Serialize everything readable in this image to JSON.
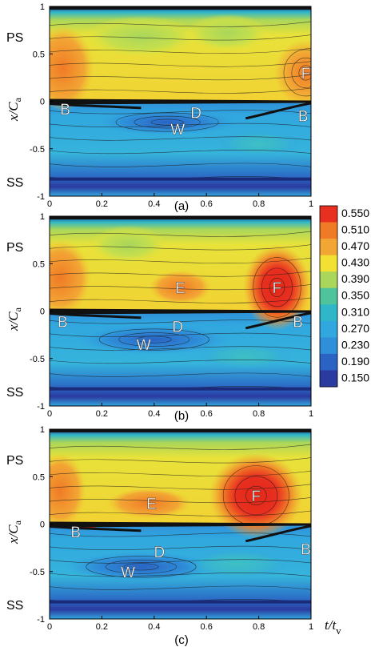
{
  "chart_data": {
    "type": "heatmap",
    "xlabel_main": "t",
    "xlabel_sub": "v",
    "ylabel_main": "x/C",
    "ylabel_sub": "a",
    "x_ticks": [
      "0",
      "0.2",
      "0.4",
      "0.6",
      "0.8",
      "1"
    ],
    "y_ticks": [
      "1",
      "0.5",
      "0",
      "-0.5",
      "-1"
    ],
    "xlim": [
      0,
      1
    ],
    "ylim": [
      -1,
      1
    ],
    "side_labels": {
      "top": "PS",
      "bottom": "SS"
    },
    "colorbar": {
      "levels": [
        "0.550",
        "0.510",
        "0.470",
        "0.430",
        "0.390",
        "0.350",
        "0.310",
        "0.270",
        "0.230",
        "0.190",
        "0.150"
      ],
      "colors": [
        "#e83020",
        "#f07a26",
        "#f2a634",
        "#f2e033",
        "#a9d65b",
        "#4fc39c",
        "#2fb6c9",
        "#31a7df",
        "#2f8fd9",
        "#2a63c4",
        "#2b3a9e"
      ]
    },
    "panels": [
      {
        "caption": "(a)",
        "annotations": [
          {
            "text": "F",
            "x": 0.98,
            "y": 0.3
          },
          {
            "text": "B",
            "x": 0.06,
            "y": -0.08
          },
          {
            "text": "D",
            "x": 0.56,
            "y": -0.12
          },
          {
            "text": "B",
            "x": 0.97,
            "y": -0.15
          },
          {
            "text": "W",
            "x": 0.49,
            "y": -0.29
          }
        ]
      },
      {
        "caption": "(b)",
        "annotations": [
          {
            "text": "E",
            "x": 0.5,
            "y": 0.25
          },
          {
            "text": "F",
            "x": 0.87,
            "y": 0.25
          },
          {
            "text": "B",
            "x": 0.05,
            "y": -0.11
          },
          {
            "text": "D",
            "x": 0.49,
            "y": -0.16
          },
          {
            "text": "B",
            "x": 0.95,
            "y": -0.11
          },
          {
            "text": "W",
            "x": 0.36,
            "y": -0.35
          }
        ]
      },
      {
        "caption": "(c)",
        "annotations": [
          {
            "text": "F",
            "x": 0.79,
            "y": 0.3
          },
          {
            "text": "E",
            "x": 0.39,
            "y": 0.22
          },
          {
            "text": "B",
            "x": 0.1,
            "y": -0.08
          },
          {
            "text": "D",
            "x": 0.42,
            "y": -0.29
          },
          {
            "text": "W",
            "x": 0.3,
            "y": -0.5
          },
          {
            "text": "B",
            "x": 0.98,
            "y": -0.26
          }
        ]
      }
    ]
  }
}
